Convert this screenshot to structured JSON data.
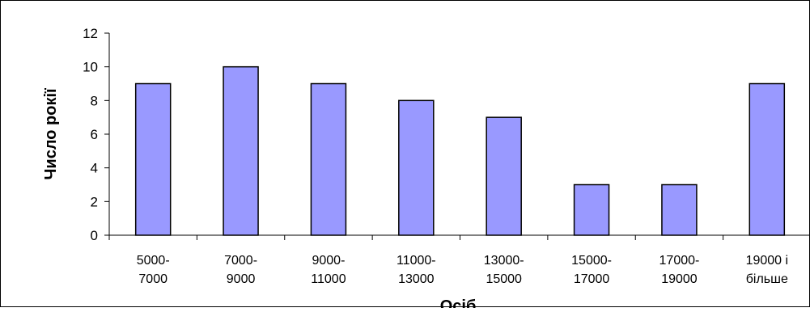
{
  "chart_data": {
    "type": "bar",
    "title": "",
    "xlabel": "Осіб",
    "ylabel": "Число рокії",
    "categories": [
      [
        "5000-",
        "7000"
      ],
      [
        "7000-",
        "9000"
      ],
      [
        "9000-",
        "11000"
      ],
      [
        "11000-",
        "13000"
      ],
      [
        "13000-",
        "15000"
      ],
      [
        "15000-",
        "17000"
      ],
      [
        "17000-",
        "19000"
      ],
      [
        "19000 і",
        "більше"
      ]
    ],
    "values": [
      9,
      10,
      9,
      8,
      7,
      3,
      3,
      9
    ],
    "ylim": [
      0,
      12
    ],
    "yticks": [
      0,
      2,
      4,
      6,
      8,
      10,
      12
    ],
    "grid": false,
    "legend": "none",
    "colors": {
      "bar_fill": "#9999ff",
      "bar_stroke": "#000000",
      "axis": "#000000"
    }
  }
}
